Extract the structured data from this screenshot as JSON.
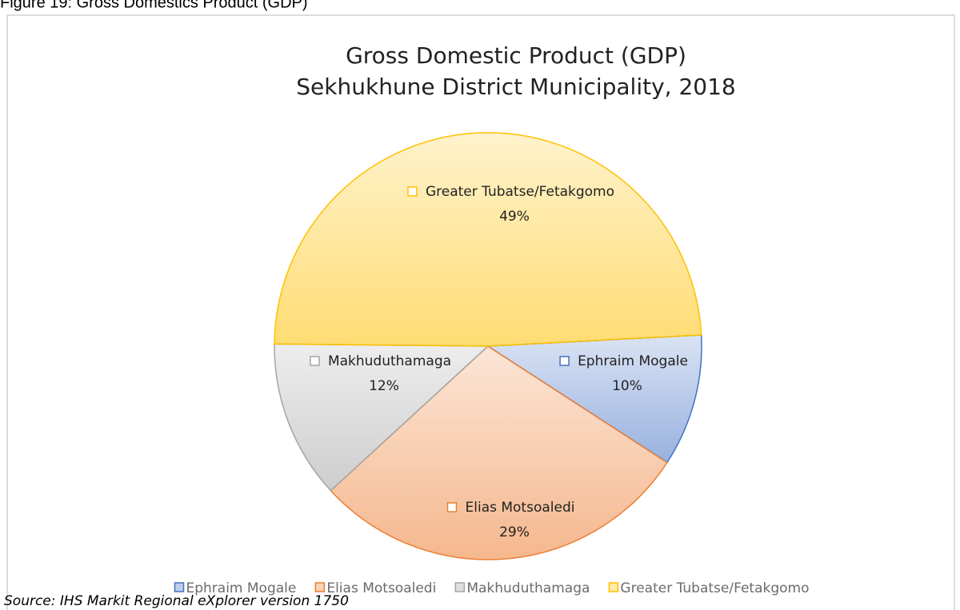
{
  "caption": "Figure 19: Gross Domestics Product (GDP)",
  "source": "Source: IHS Markit Regional eXplorer version 1750",
  "chart_data": {
    "type": "pie",
    "title": [
      "Gross Domestic Product (GDP)",
      "Sekhukhune District Municipality, 2018"
    ],
    "categories": [
      "Ephraim Mogale",
      "Elias Motsoaledi",
      "Makhuduthamaga",
      "Greater Tubatse/Fetakgomo"
    ],
    "values": [
      10,
      29,
      12,
      49
    ],
    "value_labels": [
      "10%",
      "29%",
      "12%",
      "49%"
    ],
    "colors": [
      "#4472c4",
      "#ed7d31",
      "#a5a5a5",
      "#ffc000"
    ],
    "legend": "bottom"
  }
}
